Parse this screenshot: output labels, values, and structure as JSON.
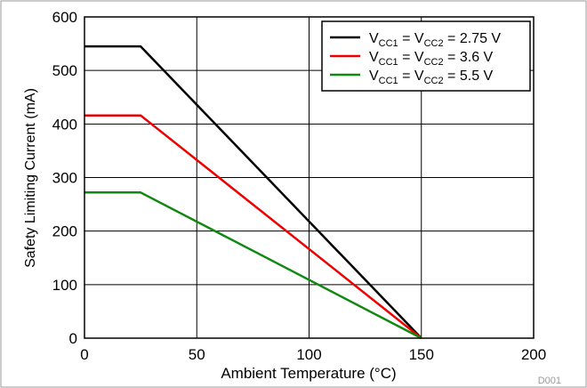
{
  "chart_data": {
    "type": "line",
    "xlabel": "Ambient Temperature (°C)",
    "ylabel": "Safety Limiting Current (mA)",
    "xlim": [
      0,
      200
    ],
    "ylim": [
      0,
      600
    ],
    "xticks": [
      "0",
      "50",
      "100",
      "150",
      "200"
    ],
    "yticks": [
      "0",
      "100",
      "200",
      "300",
      "400",
      "500",
      "600"
    ],
    "grid": true,
    "legend_position": "top-right",
    "series": [
      {
        "name": "VCC1 = VCC2 = 2.75 V",
        "legend": {
          "prefix": "V",
          "sub1": "CC1",
          "mid": " = V",
          "sub2": "CC2",
          "suffix": " = 2.75 V"
        },
        "color": "#000000",
        "x": [
          0,
          25,
          150
        ],
        "y": [
          545,
          545,
          0
        ]
      },
      {
        "name": "VCC1 = VCC2 = 3.6 V",
        "legend": {
          "prefix": "V",
          "sub1": "CC1",
          "mid": " = V",
          "sub2": "CC2",
          "suffix": " = 3.6 V"
        },
        "color": "#ee0000",
        "x": [
          0,
          25,
          150
        ],
        "y": [
          416,
          416,
          0
        ]
      },
      {
        "name": "VCC1 = VCC2 = 5.5 V",
        "legend": {
          "prefix": "V",
          "sub1": "CC1",
          "mid": " = V",
          "sub2": "CC2",
          "suffix": " = 5.5 V"
        },
        "color": "#118811",
        "x": [
          0,
          25,
          150
        ],
        "y": [
          272,
          272,
          0
        ]
      }
    ],
    "figure_id": "D001"
  }
}
